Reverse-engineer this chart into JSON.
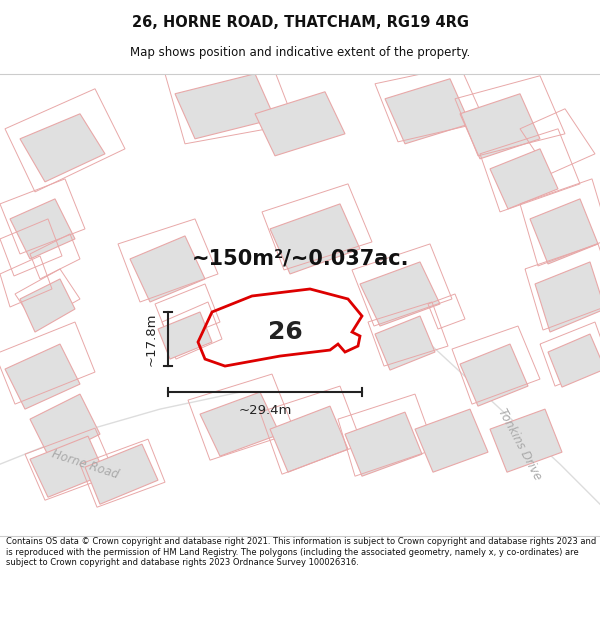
{
  "title": "26, HORNE ROAD, THATCHAM, RG19 4RG",
  "subtitle": "Map shows position and indicative extent of the property.",
  "footer": "Contains OS data © Crown copyright and database right 2021. This information is subject to Crown copyright and database rights 2023 and is reproduced with the permission of HM Land Registry. The polygons (including the associated geometry, namely x, y co-ordinates) are subject to Crown copyright and database rights 2023 Ordnance Survey 100026316.",
  "area_label": "~150m²/~0.037ac.",
  "width_label": "~29.4m",
  "height_label": "~17.8m",
  "property_number": "26",
  "bg_color": "#ffffff",
  "map_bg": "#ffffff",
  "building_fill": "#e0e0e0",
  "building_edge": "#c8c8c8",
  "plot_edge": "#e8a8a8",
  "highlight_color": "#dd0000",
  "street_label_horne": "Horne Road",
  "street_label_tonkins": "Tonkins Drive",
  "street_color": "#cccccc",
  "dim_color": "#222222",
  "text_color": "#111111"
}
